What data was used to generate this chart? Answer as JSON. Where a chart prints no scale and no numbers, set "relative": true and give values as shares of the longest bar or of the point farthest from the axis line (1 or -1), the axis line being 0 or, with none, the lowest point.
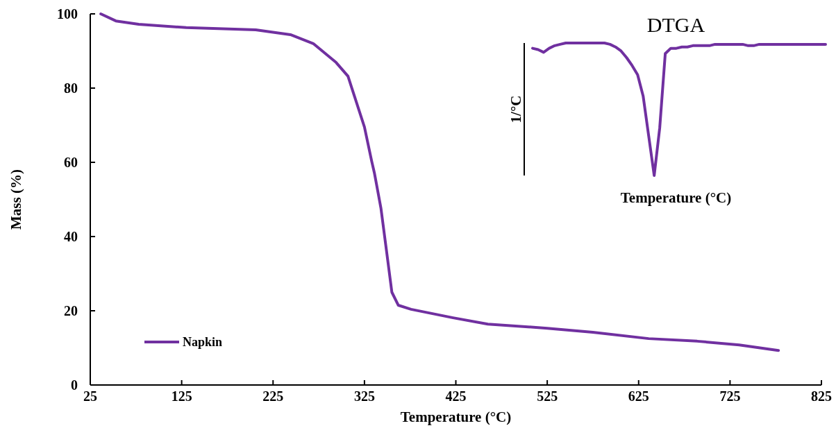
{
  "chart_data": [
    {
      "type": "line",
      "xlabel": "Temperature (°C)",
      "ylabel": "Mass (%)",
      "xlim": [
        25,
        825
      ],
      "xticks": [
        25,
        125,
        225,
        325,
        425,
        525,
        625,
        725,
        825
      ],
      "ylim": [
        0,
        100
      ],
      "yticks": [
        0,
        20,
        40,
        60,
        80,
        100
      ],
      "grid": false,
      "legend": "bottom left",
      "line_style": "solid",
      "marker": "none",
      "series": [
        {
          "name": "Napkin",
          "color": "#7030a0",
          "x": [
            36.5,
            53,
            78,
            130,
            206,
            244,
            269,
            294,
            307,
            325,
            333,
            336,
            343,
            349,
            355,
            362,
            376,
            422,
            460,
            525,
            575,
            636,
            689,
            735,
            778
          ],
          "values": [
            100,
            98.1,
            97.2,
            96.3,
            95.7,
            94.4,
            92,
            86.9,
            83.2,
            69.5,
            60.2,
            57,
            47.7,
            36.4,
            25,
            21.5,
            20.4,
            18.1,
            16.4,
            15.3,
            14.2,
            12.5,
            11.8,
            10.8,
            9.3
          ]
        }
      ]
    },
    {
      "type": "line",
      "title": "DTGA",
      "xlabel": "Temperature (°C)",
      "ylabel": "1/°C",
      "relative": true,
      "grid": false,
      "legend": false,
      "marker": "none",
      "line_style": "solid",
      "categories": [
        null,
        null,
        null,
        null,
        null,
        null,
        null,
        null,
        null,
        null,
        null,
        null,
        null,
        null,
        null,
        null,
        null,
        null,
        null,
        null,
        null,
        null,
        null,
        null,
        null,
        null,
        null,
        null,
        null,
        null,
        null,
        null,
        null,
        null,
        null,
        null,
        null,
        null,
        null,
        null,
        null,
        null,
        null,
        null,
        null,
        null,
        null,
        null,
        null,
        null,
        null,
        null,
        null,
        null
      ],
      "series": [
        {
          "color": "#7030a0",
          "values": [
            0.96,
            0.95,
            0.93,
            0.96,
            0.98,
            0.99,
            1,
            1,
            1,
            1,
            1,
            1,
            1,
            1,
            0.99,
            0.97,
            0.94,
            0.89,
            0.83,
            0.76,
            0.6,
            0.3,
            0,
            0.36,
            0.92,
            0.96,
            0.96,
            0.97,
            0.97,
            0.98,
            0.98,
            0.98,
            0.98,
            0.99,
            0.99,
            0.99,
            0.99,
            0.99,
            0.99,
            0.98,
            0.98,
            0.99,
            0.99,
            0.99,
            0.99,
            0.99,
            0.99,
            0.99,
            0.99,
            0.99,
            0.99,
            0.99,
            0.99,
            0.99
          ]
        }
      ]
    }
  ]
}
